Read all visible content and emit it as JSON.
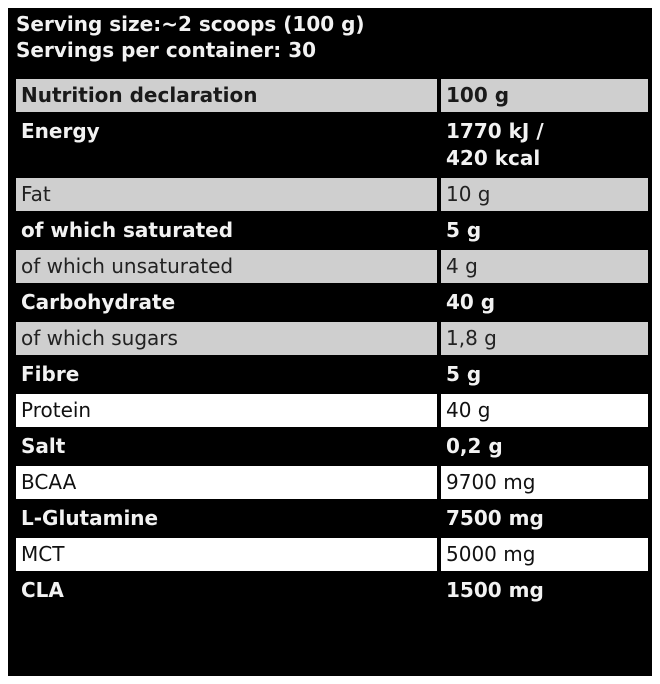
{
  "serving_size": "Serving size:~2 scoops (100 g)",
  "servings_per_container": "Servings per container: 30",
  "table": {
    "header": {
      "label": "Nutrition declaration",
      "value": "100 g"
    },
    "rows": [
      {
        "label": "Energy",
        "value_line1": "1770 kJ /",
        "value_line2": "420 kcal"
      },
      {
        "label": "Fat",
        "value": "10 g"
      },
      {
        "label": "of which saturated",
        "value": "5 g"
      },
      {
        "label": "of which unsaturated",
        "value": "4 g"
      },
      {
        "label": "Carbohydrate",
        "value": "40 g"
      },
      {
        "label": "of which sugars",
        "value": "1,8 g"
      },
      {
        "label": "Fibre",
        "value": "5 g"
      },
      {
        "label": "Protein",
        "value": "40 g"
      },
      {
        "label": "Salt",
        "value": "0,2 g"
      },
      {
        "label": "BCAA",
        "value": "9700 mg"
      },
      {
        "label": "L-Glutamine",
        "value": "7500 mg"
      },
      {
        "label": "MCT",
        "value": "5000 mg"
      },
      {
        "label": "CLA",
        "value": "1500 mg"
      }
    ]
  },
  "colors": {
    "panel_background": "#000000",
    "gray_row": "#cfcfcf",
    "white_row": "#ffffff",
    "light_text": "#f2f2f2",
    "dark_text": "#1a1a1a"
  }
}
